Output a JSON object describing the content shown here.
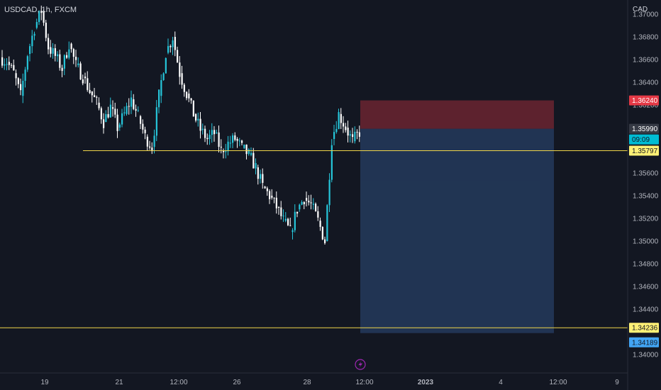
{
  "header": {
    "symbol": "USDCAD, 1h, FXCM",
    "currency": "CAD"
  },
  "colors": {
    "background": "#131722",
    "candle_up": "#26c6da",
    "candle_down": "#ffffff",
    "stop_zone": "#6b2430",
    "target_zone": "#243a5c",
    "hline": "#f0d54a",
    "tag_stop": "#e53946",
    "tag_price": "#363a45",
    "tag_time": "#00bcd4",
    "tag_target": "#42a5f5",
    "tag_hline": "#fff176",
    "lightning": "#9c27b0"
  },
  "chart_data": {
    "type": "candlestick",
    "title": "USDCAD, 1h, FXCM",
    "ylabel": "CAD",
    "ylim": [
      1.3385,
      1.3715
    ],
    "yticks": [
      "1.37000",
      "1.36800",
      "1.36600",
      "1.36400",
      "1.36200",
      "1.35600",
      "1.35400",
      "1.35200",
      "1.35000",
      "1.34800",
      "1.34600",
      "1.34400",
      "1.34000"
    ],
    "ytick_values": [
      1.37,
      1.368,
      1.366,
      1.364,
      1.362,
      1.356,
      1.354,
      1.352,
      1.35,
      1.348,
      1.346,
      1.344,
      1.34
    ],
    "xticks": [
      "19",
      "21",
      "12:00",
      "26",
      "28",
      "12:00",
      "2023",
      "4",
      "12:00",
      "9"
    ],
    "xtick_bold": [
      false,
      false,
      false,
      false,
      false,
      false,
      true,
      false,
      false,
      false
    ],
    "price_path": [
      [
        1.3662,
        1.3658
      ],
      [
        1.3658,
        1.3648
      ],
      [
        1.3648,
        1.3628
      ],
      [
        1.3628,
        1.3665
      ],
      [
        1.3665,
        1.3688
      ],
      [
        1.3688,
        1.3703
      ],
      [
        1.3703,
        1.3671
      ],
      [
        1.3671,
        1.3663
      ],
      [
        1.3663,
        1.3652
      ],
      [
        1.3652,
        1.3674
      ],
      [
        1.3674,
        1.3655
      ],
      [
        1.3655,
        1.3645
      ],
      [
        1.3645,
        1.3632
      ],
      [
        1.3632,
        1.3622
      ],
      [
        1.3622,
        1.3605
      ],
      [
        1.3605,
        1.3618
      ],
      [
        1.3618,
        1.36
      ],
      [
        1.36,
        1.3612
      ],
      [
        1.3612,
        1.3625
      ],
      [
        1.3625,
        1.361
      ],
      [
        1.361,
        1.3592
      ],
      [
        1.3592,
        1.3583
      ],
      [
        1.3583,
        1.3628
      ],
      [
        1.3628,
        1.3666
      ],
      [
        1.3666,
        1.368
      ],
      [
        1.368,
        1.3648
      ],
      [
        1.3648,
        1.363
      ],
      [
        1.363,
        1.3612
      ],
      [
        1.3612,
        1.3598
      ],
      [
        1.3598,
        1.359
      ],
      [
        1.359,
        1.3595
      ],
      [
        1.3595,
        1.358
      ],
      [
        1.358,
        1.3586
      ],
      [
        1.3586,
        1.359
      ],
      [
        1.359,
        1.3582
      ],
      [
        1.3582,
        1.3576
      ],
      [
        1.3576,
        1.3565
      ],
      [
        1.3565,
        1.3548
      ],
      [
        1.3548,
        1.354
      ],
      [
        1.354,
        1.353
      ],
      [
        1.353,
        1.3518
      ],
      [
        1.3518,
        1.3508
      ],
      [
        1.3508,
        1.3528
      ],
      [
        1.3528,
        1.3538
      ],
      [
        1.3538,
        1.3532
      ],
      [
        1.3532,
        1.3518
      ],
      [
        1.3518,
        1.35
      ],
      [
        1.35,
        1.359
      ],
      [
        1.359,
        1.3612
      ],
      [
        1.3612,
        1.36
      ],
      [
        1.36,
        1.3588
      ],
      [
        1.3588,
        1.3596
      ]
    ],
    "horizontal_lines": [
      {
        "price": 1.35797,
        "x_start_label": "20",
        "extends_right": true
      },
      {
        "price": 1.34236,
        "x_start_label": "start",
        "extends_right": true
      }
    ],
    "position": {
      "type": "short",
      "entry": 1.3599,
      "stop": 1.3624,
      "target": 1.34189
    },
    "price_tags": [
      {
        "label": "1.36240",
        "role": "stop",
        "price": 1.3624
      },
      {
        "label": "1.35990",
        "role": "price",
        "price": 1.3599
      },
      {
        "label": "09:09",
        "role": "time",
        "price": 1.3599
      },
      {
        "label": "1.35797",
        "role": "hline",
        "price": 1.35797
      },
      {
        "label": "1.34236",
        "role": "hline",
        "price": 1.34236
      },
      {
        "label": "1.34189",
        "role": "target",
        "price": 1.34189
      }
    ]
  }
}
